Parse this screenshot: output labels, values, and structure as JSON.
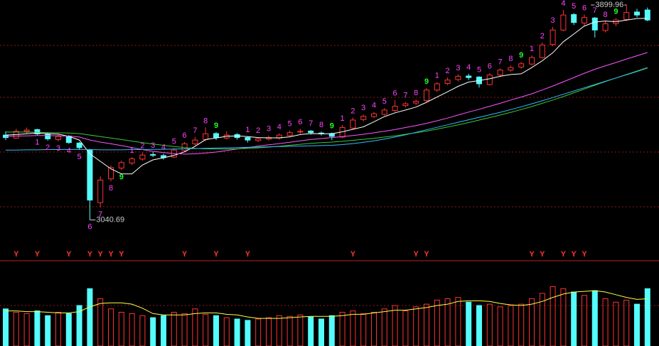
{
  "chart_data": {
    "type": "candlestick",
    "ylim": [
      2940,
      3920
    ],
    "open": [
      3380,
      3368,
      3395,
      3402,
      3385,
      3362,
      3376,
      3348,
      3320,
      3110,
      3205,
      3248,
      3268,
      3284,
      3302,
      3298,
      3292,
      3318,
      3345,
      3362,
      3386,
      3368,
      3382,
      3370,
      3358,
      3364,
      3368,
      3378,
      3392,
      3396,
      3388,
      3386,
      3372,
      3408,
      3442,
      3454,
      3463,
      3478,
      3498,
      3508,
      3518,
      3560,
      3586,
      3602,
      3616,
      3612,
      3582,
      3620,
      3640,
      3652,
      3664,
      3690,
      3742,
      3800,
      3862,
      3828,
      3848,
      3798,
      3826,
      3842,
      3872,
      3880
    ],
    "high": [
      3395,
      3405,
      3410,
      3405,
      3390,
      3382,
      3380,
      3352,
      3325,
      3215,
      3258,
      3278,
      3292,
      3310,
      3312,
      3305,
      3328,
      3352,
      3372,
      3410,
      3392,
      3395,
      3388,
      3375,
      3372,
      3378,
      3386,
      3398,
      3405,
      3400,
      3394,
      3390,
      3420,
      3450,
      3462,
      3472,
      3488,
      3520,
      3512,
      3522,
      3568,
      3592,
      3610,
      3622,
      3625,
      3615,
      3628,
      3646,
      3658,
      3672,
      3698,
      3750,
      3812,
      3880,
      3868,
      3862,
      3852,
      3835,
      3848,
      3899.96,
      3885,
      3890
    ],
    "low": [
      3360,
      3365,
      3385,
      3378,
      3358,
      3355,
      3345,
      3320,
      3040.69,
      3090,
      3195,
      3240,
      3260,
      3278,
      3292,
      3282,
      3288,
      3312,
      3338,
      3355,
      3360,
      3362,
      3362,
      3350,
      3352,
      3358,
      3362,
      3372,
      3385,
      3382,
      3378,
      3360,
      3368,
      3402,
      3435,
      3448,
      3458,
      3472,
      3490,
      3500,
      3512,
      3552,
      3580,
      3595,
      3600,
      3570,
      3578,
      3612,
      3634,
      3645,
      3658,
      3685,
      3735,
      3795,
      3820,
      3818,
      3770,
      3790,
      3815,
      3836,
      3850,
      3835
    ],
    "close": [
      3370,
      3395,
      3400,
      3385,
      3365,
      3375,
      3350,
      3330,
      3120,
      3200,
      3250,
      3270,
      3285,
      3300,
      3300,
      3290,
      3320,
      3345,
      3360,
      3385,
      3370,
      3380,
      3370,
      3360,
      3365,
      3370,
      3380,
      3390,
      3395,
      3390,
      3385,
      3375,
      3410,
      3440,
      3455,
      3465,
      3480,
      3495,
      3505,
      3515,
      3560,
      3585,
      3600,
      3615,
      3610,
      3585,
      3620,
      3640,
      3650,
      3665,
      3690,
      3740,
      3800,
      3860,
      3830,
      3850,
      3800,
      3825,
      3840,
      3870,
      3860,
      3840
    ],
    "up_color": "#ff3232",
    "down_color": "#54fcfc",
    "ma_lines": [
      {
        "color": "#ffffff",
        "values": [
          3380,
          3382,
          3385,
          3388,
          3385,
          3384,
          3375,
          3360,
          3305,
          3275,
          3245,
          3225,
          3225,
          3260,
          3281,
          3289,
          3299,
          3313,
          3335,
          3362,
          3368,
          3375,
          3377,
          3374,
          3370,
          3369,
          3369,
          3373,
          3382,
          3386,
          3385,
          3385,
          3393,
          3403,
          3413,
          3433,
          3454,
          3469,
          3480,
          3492,
          3511,
          3532,
          3553,
          3575,
          3592,
          3598,
          3605,
          3615,
          3622,
          3625,
          3650,
          3677,
          3709,
          3753,
          3784,
          3816,
          3832,
          3836,
          3833,
          3840,
          3846,
          3847
        ]
      },
      {
        "color": "#ff55ff",
        "values": [
          3375,
          3376,
          3377,
          3378,
          3378,
          3377,
          3376,
          3372,
          3360,
          3352,
          3345,
          3338,
          3330,
          3322,
          3315,
          3310,
          3306,
          3304,
          3305,
          3308,
          3312,
          3318,
          3324,
          3330,
          3336,
          3341,
          3346,
          3351,
          3357,
          3362,
          3366,
          3370,
          3374,
          3378,
          3383,
          3389,
          3395,
          3402,
          3410,
          3418,
          3427,
          3437,
          3448,
          3460,
          3472,
          3483,
          3495,
          3507,
          3520,
          3532,
          3545,
          3560,
          3576,
          3593,
          3610,
          3627,
          3643,
          3657,
          3670,
          3684,
          3697,
          3710
        ]
      },
      {
        "color": "#33cc33",
        "values": [
          3392,
          3392,
          3392,
          3391,
          3390,
          3389,
          3388,
          3386,
          3380,
          3374,
          3368,
          3362,
          3356,
          3350,
          3344,
          3339,
          3334,
          3330,
          3327,
          3325,
          3324,
          3324,
          3325,
          3327,
          3329,
          3332,
          3335,
          3339,
          3343,
          3347,
          3350,
          3352,
          3355,
          3359,
          3363,
          3367,
          3372,
          3377,
          3383,
          3389,
          3396,
          3404,
          3412,
          3421,
          3430,
          3440,
          3450,
          3460,
          3471,
          3482,
          3494,
          3507,
          3520,
          3534,
          3549,
          3564,
          3579,
          3594,
          3608,
          3622,
          3636,
          3650
        ]
      },
      {
        "color": "#33bbff",
        "values": [
          3320,
          3320,
          3321,
          3321,
          3322,
          3322,
          3322,
          3323,
          3322,
          3321,
          3321,
          3321,
          3322,
          3322,
          3323,
          3323,
          3324,
          3325,
          3326,
          3327,
          3328,
          3329,
          3330,
          3331,
          3332,
          3333,
          3334,
          3335,
          3336,
          3337,
          3338,
          3339,
          3342,
          3346,
          3351,
          3357,
          3364,
          3372,
          3381,
          3391,
          3401,
          3411,
          3421,
          3431,
          3441,
          3451,
          3461,
          3471,
          3482,
          3493,
          3505,
          3517,
          3530,
          3543,
          3556,
          3569,
          3582,
          3595,
          3608,
          3621,
          3634,
          3648
        ]
      }
    ],
    "buy_setup": [
      null,
      null,
      null,
      1,
      2,
      3,
      4,
      5,
      6,
      7,
      8,
      9,
      null,
      null,
      null,
      null,
      null,
      null,
      null,
      null,
      null,
      null,
      null,
      null,
      null,
      null,
      null,
      null,
      null,
      null,
      null,
      null,
      null,
      null,
      null,
      null,
      null,
      null,
      null,
      null,
      null,
      null,
      null,
      null,
      null,
      null,
      null,
      null,
      null,
      null,
      null,
      null,
      null,
      null,
      null,
      null,
      null,
      null,
      null,
      null,
      null,
      null
    ],
    "sell_setup": [
      null,
      null,
      null,
      null,
      null,
      null,
      null,
      null,
      null,
      null,
      null,
      null,
      1,
      2,
      3,
      4,
      5,
      6,
      7,
      8,
      9,
      null,
      null,
      1,
      2,
      3,
      4,
      5,
      6,
      7,
      8,
      9,
      1,
      2,
      3,
      4,
      5,
      6,
      7,
      8,
      9,
      1,
      2,
      3,
      4,
      5,
      6,
      7,
      8,
      9,
      1,
      2,
      3,
      4,
      5,
      6,
      7,
      8,
      9,
      null,
      null,
      null
    ],
    "count_color": "#ff44ff",
    "nine_color": "#22ff22",
    "signals": [
      null,
      "Y",
      null,
      "Y",
      null,
      null,
      "Y",
      null,
      "Y",
      "Y",
      "Y",
      "Y",
      null,
      null,
      null,
      null,
      null,
      "Y",
      null,
      null,
      "Y",
      null,
      null,
      "Y",
      null,
      null,
      null,
      null,
      null,
      null,
      null,
      null,
      null,
      "Y",
      null,
      null,
      null,
      null,
      null,
      "Y",
      "Y",
      null,
      null,
      null,
      null,
      null,
      null,
      null,
      null,
      null,
      "Y",
      "Y",
      null,
      "Y",
      "Y",
      "Y",
      null,
      null,
      null,
      null,
      null,
      null
    ],
    "signal_color": "#ff3232",
    "volume": [
      55,
      50,
      48,
      52,
      45,
      50,
      48,
      60,
      85,
      70,
      55,
      50,
      48,
      45,
      42,
      45,
      50,
      48,
      55,
      47,
      45,
      42,
      40,
      38,
      40,
      42,
      45,
      44,
      46,
      43,
      40,
      45,
      50,
      52,
      48,
      50,
      55,
      60,
      52,
      58,
      62,
      68,
      70,
      72,
      65,
      60,
      62,
      58,
      60,
      62,
      70,
      78,
      88,
      85,
      80,
      75,
      82,
      70,
      65,
      68,
      62,
      85
    ],
    "volume_ma": [
      52,
      52,
      51,
      51,
      50,
      49,
      49,
      51,
      58,
      63,
      64,
      64,
      62,
      56,
      48,
      46,
      46,
      46,
      48,
      49,
      49,
      47,
      46,
      43,
      41,
      41,
      41,
      42,
      43,
      44,
      44,
      44,
      45,
      47,
      47,
      49,
      51,
      53,
      53,
      55,
      57,
      60,
      62,
      66,
      67,
      67,
      66,
      63,
      61,
      60,
      62,
      66,
      72,
      77,
      80,
      81,
      82,
      80,
      76,
      72,
      69,
      70
    ],
    "volume_ma_color": "#ffff44",
    "volume_ylim": [
      0,
      100
    ]
  }
}
